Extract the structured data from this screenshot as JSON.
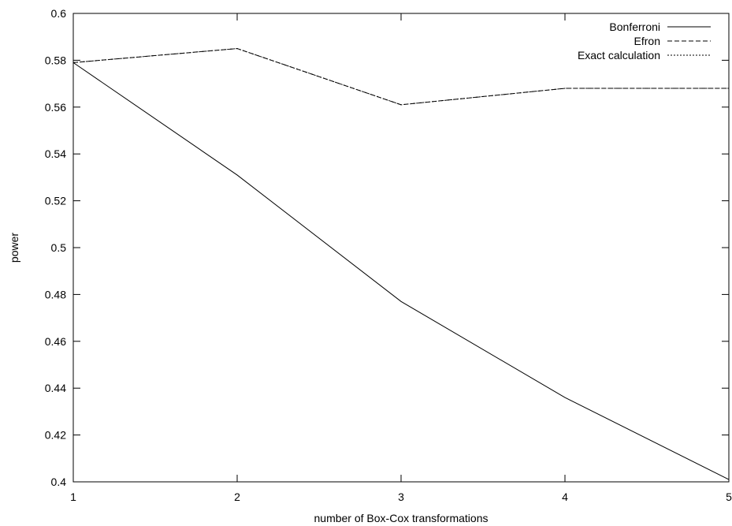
{
  "chart_data": {
    "type": "line",
    "title": "",
    "xlabel": "number of Box-Cox transformations",
    "ylabel": "power",
    "xlim": [
      1,
      5
    ],
    "ylim": [
      0.4,
      0.6
    ],
    "x_ticks": [
      1,
      2,
      3,
      4,
      5
    ],
    "y_ticks": [
      0.4,
      0.42,
      0.44,
      0.46,
      0.48,
      0.5,
      0.52,
      0.54,
      0.56,
      0.58,
      0.6
    ],
    "grid": false,
    "legend_position": "top-right",
    "x": [
      1,
      2,
      3,
      4,
      5
    ],
    "series": [
      {
        "name": "Bonferroni",
        "style": "solid",
        "values": [
          0.579,
          0.531,
          0.477,
          0.436,
          0.401
        ]
      },
      {
        "name": "Efron",
        "style": "dashed",
        "values": [
          0.579,
          0.585,
          0.561,
          0.568,
          0.568
        ]
      },
      {
        "name": "Exact calculation",
        "style": "dotted",
        "values": [
          0.579,
          0.585,
          0.561,
          0.568,
          0.568
        ]
      }
    ]
  }
}
